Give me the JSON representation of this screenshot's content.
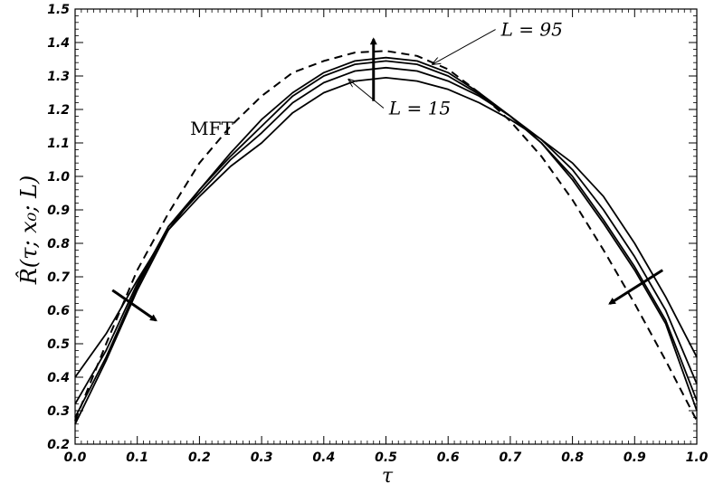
{
  "chart_data": {
    "type": "line",
    "xlabel": "τ",
    "ylabel": "R̂(τ; x₀; L)",
    "xlim": [
      0.0,
      1.0
    ],
    "ylim": [
      0.2,
      1.5
    ],
    "xticks": [
      "0.0",
      "0.1",
      "0.2",
      "0.3",
      "0.4",
      "0.5",
      "0.6",
      "0.7",
      "0.8",
      "0.9",
      "1.0"
    ],
    "yticks": [
      "0.2",
      "0.3",
      "0.4",
      "0.5",
      "0.6",
      "0.7",
      "0.8",
      "0.9",
      "1.0",
      "1.1",
      "1.2",
      "1.3",
      "1.4",
      "1.5"
    ],
    "grid": false,
    "legend": "none",
    "series": [
      {
        "style": "dashed",
        "x": [
          0.0,
          0.05,
          0.1,
          0.15,
          0.2,
          0.25,
          0.3,
          0.35,
          0.4,
          0.45,
          0.5,
          0.55,
          0.6,
          0.65,
          0.7,
          0.75,
          0.8,
          0.85,
          0.9,
          0.95,
          1.0
        ],
        "y": [
          0.27,
          0.5,
          0.72,
          0.89,
          1.04,
          1.15,
          1.24,
          1.31,
          1.345,
          1.37,
          1.375,
          1.36,
          1.32,
          1.25,
          1.165,
          1.06,
          0.93,
          0.78,
          0.62,
          0.45,
          0.27
        ]
      },
      {
        "style": "solid",
        "x": [
          0.0,
          0.05,
          0.1,
          0.15,
          0.2,
          0.25,
          0.3,
          0.35,
          0.4,
          0.45,
          0.5,
          0.55,
          0.6,
          0.65,
          0.7,
          0.75,
          0.8,
          0.85,
          0.9,
          0.95,
          1.0
        ],
        "y": [
          0.26,
          0.45,
          0.66,
          0.84,
          0.96,
          1.07,
          1.17,
          1.25,
          1.31,
          1.345,
          1.355,
          1.345,
          1.31,
          1.25,
          1.18,
          1.1,
          0.99,
          0.86,
          0.72,
          0.56,
          0.3
        ]
      },
      {
        "style": "solid",
        "x": [
          0.0,
          0.05,
          0.1,
          0.15,
          0.2,
          0.25,
          0.3,
          0.35,
          0.4,
          0.45,
          0.5,
          0.55,
          0.6,
          0.65,
          0.7,
          0.75,
          0.8,
          0.85,
          0.9,
          0.95,
          1.0
        ],
        "y": [
          0.28,
          0.46,
          0.67,
          0.85,
          0.96,
          1.06,
          1.15,
          1.24,
          1.3,
          1.335,
          1.345,
          1.335,
          1.3,
          1.245,
          1.18,
          1.1,
          1.0,
          0.87,
          0.73,
          0.57,
          0.33
        ]
      },
      {
        "style": "solid",
        "x": [
          0.0,
          0.05,
          0.1,
          0.15,
          0.2,
          0.25,
          0.3,
          0.35,
          0.4,
          0.45,
          0.5,
          0.55,
          0.6,
          0.65,
          0.7,
          0.75,
          0.8,
          0.85,
          0.9,
          0.95,
          1.0
        ],
        "y": [
          0.32,
          0.48,
          0.68,
          0.85,
          0.95,
          1.05,
          1.13,
          1.22,
          1.28,
          1.315,
          1.325,
          1.315,
          1.285,
          1.24,
          1.18,
          1.11,
          1.02,
          0.9,
          0.76,
          0.6,
          0.38
        ]
      },
      {
        "style": "solid",
        "x": [
          0.0,
          0.05,
          0.1,
          0.15,
          0.2,
          0.25,
          0.3,
          0.35,
          0.4,
          0.45,
          0.5,
          0.55,
          0.6,
          0.65,
          0.7,
          0.75,
          0.8,
          0.85,
          0.9,
          0.95,
          1.0
        ],
        "y": [
          0.4,
          0.53,
          0.69,
          0.84,
          0.94,
          1.03,
          1.1,
          1.19,
          1.25,
          1.285,
          1.295,
          1.285,
          1.26,
          1.22,
          1.17,
          1.11,
          1.04,
          0.94,
          0.8,
          0.64,
          0.46
        ]
      }
    ],
    "annotations": [
      {
        "text": "MFT",
        "x": 0.185,
        "y": 1.125
      },
      {
        "text": "L = 95",
        "x": 0.685,
        "y": 1.42,
        "arrow_to": [
          0.575,
          1.335
        ]
      },
      {
        "text": "L = 15",
        "x": 0.505,
        "y": 1.185,
        "arrow_to": [
          0.44,
          1.29
        ]
      }
    ],
    "trend_arrows": [
      {
        "from": [
          0.06,
          0.66
        ],
        "to": [
          0.13,
          0.57
        ]
      },
      {
        "from": [
          0.48,
          1.225
        ],
        "to": [
          0.48,
          1.41
        ]
      },
      {
        "from": [
          0.945,
          0.72
        ],
        "to": [
          0.86,
          0.62
        ]
      }
    ]
  }
}
